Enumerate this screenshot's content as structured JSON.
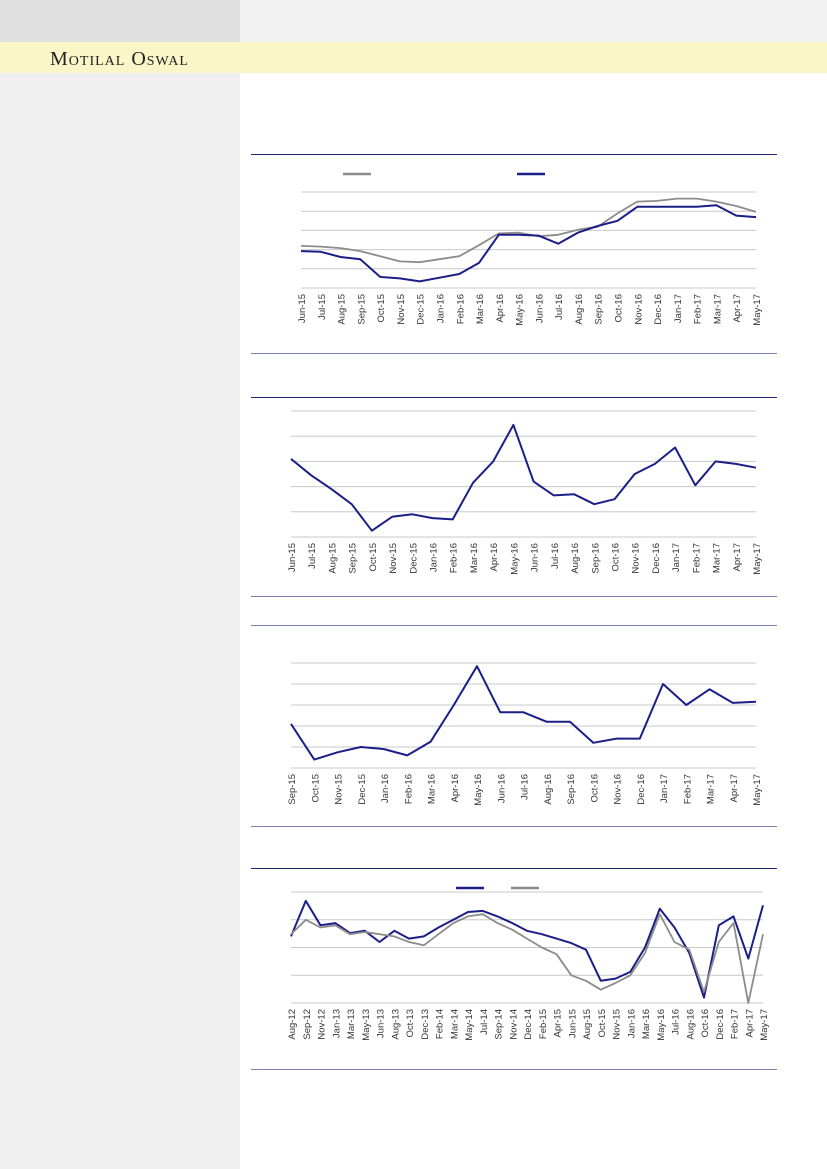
{
  "header": {
    "brand": "Motilal Oswal"
  },
  "colors": {
    "navy": "#1a1f86",
    "gray": "#8c8c8c",
    "grid": "#c8c8c8",
    "rule": "#1b2872"
  },
  "chart_data": [
    {
      "type": "line",
      "x": [
        "Jun-15",
        "Jul-15",
        "Aug-15",
        "Sep-15",
        "Oct-15",
        "Nov-15",
        "Dec-15",
        "Jan-16",
        "Feb-16",
        "Mar-16",
        "Apr-16",
        "May-16",
        "Jun-16",
        "Jul-16",
        "Aug-16",
        "Sep-16",
        "Oct-16",
        "Nov-16",
        "Dec-16",
        "Jan-17",
        "Feb-17",
        "Mar-17",
        "Apr-17",
        "May-17"
      ],
      "series": [
        {
          "color": "gray",
          "values": [
            57,
            56,
            54,
            50,
            43,
            36,
            35,
            39,
            43,
            58,
            74,
            75,
            70,
            72,
            79,
            83,
            101,
            117,
            118,
            121,
            121,
            117,
            111,
            103
          ]
        },
        {
          "color": "navy",
          "values": [
            50,
            49,
            42,
            39,
            15,
            13,
            9,
            14,
            19,
            34,
            72,
            72,
            71,
            60,
            75,
            84,
            91,
            110,
            110,
            110,
            110,
            112,
            98,
            96
          ]
        }
      ],
      "ylim": [
        0,
        130
      ],
      "grid": true,
      "legend": "top"
    },
    {
      "type": "line",
      "x": [
        "Jun-15",
        "Jul-15",
        "Aug-15",
        "Sep-15",
        "Oct-15",
        "Nov-15",
        "Dec-15",
        "Jan-16",
        "Feb-16",
        "Mar-16",
        "Apr-16",
        "May-16",
        "Jun-16",
        "Jul-16",
        "Aug-16",
        "Sep-16",
        "Oct-16",
        "Nov-16",
        "Dec-16",
        "Jan-17",
        "Feb-17",
        "Mar-17",
        "Apr-17",
        "May-17"
      ],
      "series": [
        {
          "color": "navy",
          "values": [
            62,
            49,
            38,
            26,
            5,
            16,
            18,
            15,
            14,
            43,
            60,
            89,
            44,
            33,
            34,
            26,
            30,
            50,
            58,
            71,
            41,
            60,
            58,
            55
          ]
        }
      ],
      "ylim": [
        0,
        100
      ],
      "grid": true
    },
    {
      "type": "line",
      "x": [
        "Sep-15",
        "Oct-15",
        "Nov-15",
        "Dec-15",
        "Jan-16",
        "Feb-16",
        "Mar-16",
        "Apr-16",
        "May-16",
        "Jun-16",
        "Jul-16",
        "Aug-16",
        "Sep-16",
        "Oct-16",
        "Nov-16",
        "Dec-16",
        "Jan-17",
        "Feb-17",
        "Mar-17",
        "Apr-17",
        "May-17"
      ],
      "series": [
        {
          "color": "navy",
          "values": [
            42,
            8,
            15,
            20,
            18,
            12,
            25,
            60,
            97,
            53,
            53,
            44,
            44,
            24,
            28,
            28,
            80,
            60,
            75,
            62,
            63
          ]
        }
      ],
      "ylim": [
        0,
        100
      ],
      "grid": true
    },
    {
      "type": "line",
      "x": [
        "Aug-12",
        "Sep-12",
        "Nov-12",
        "Jan-13",
        "Mar-13",
        "May-13",
        "Jun-13",
        "Aug-13",
        "Oct-13",
        "Dec-13",
        "Feb-14",
        "Mar-14",
        "May-14",
        "Jul-14",
        "Sep-14",
        "Nov-14",
        "Dec-14",
        "Feb-15",
        "Apr-15",
        "Jun-15",
        "Aug-15",
        "Oct-15",
        "Nov-15",
        "Jan-16",
        "Mar-16",
        "May-16",
        "Jul-16",
        "Aug-16",
        "Oct-16",
        "Dec-16",
        "Feb-17",
        "Apr-17",
        "May-17"
      ],
      "series": [
        {
          "color": "navy",
          "values": [
            60,
            92,
            70,
            72,
            63,
            65,
            55,
            65,
            58,
            60,
            68,
            75,
            82,
            83,
            78,
            72,
            65,
            62,
            58,
            54,
            48,
            20,
            22,
            28,
            50,
            85,
            68,
            45,
            5,
            70,
            78,
            40,
            88
          ]
        },
        {
          "color": "gray",
          "values": [
            62,
            75,
            68,
            70,
            62,
            64,
            62,
            60,
            55,
            52,
            62,
            72,
            78,
            80,
            72,
            66,
            58,
            50,
            44,
            25,
            20,
            12,
            18,
            25,
            45,
            80,
            55,
            48,
            10,
            55,
            72,
            0,
            62
          ]
        }
      ],
      "ylim": [
        0,
        100
      ],
      "grid": true,
      "legend": "top"
    }
  ]
}
